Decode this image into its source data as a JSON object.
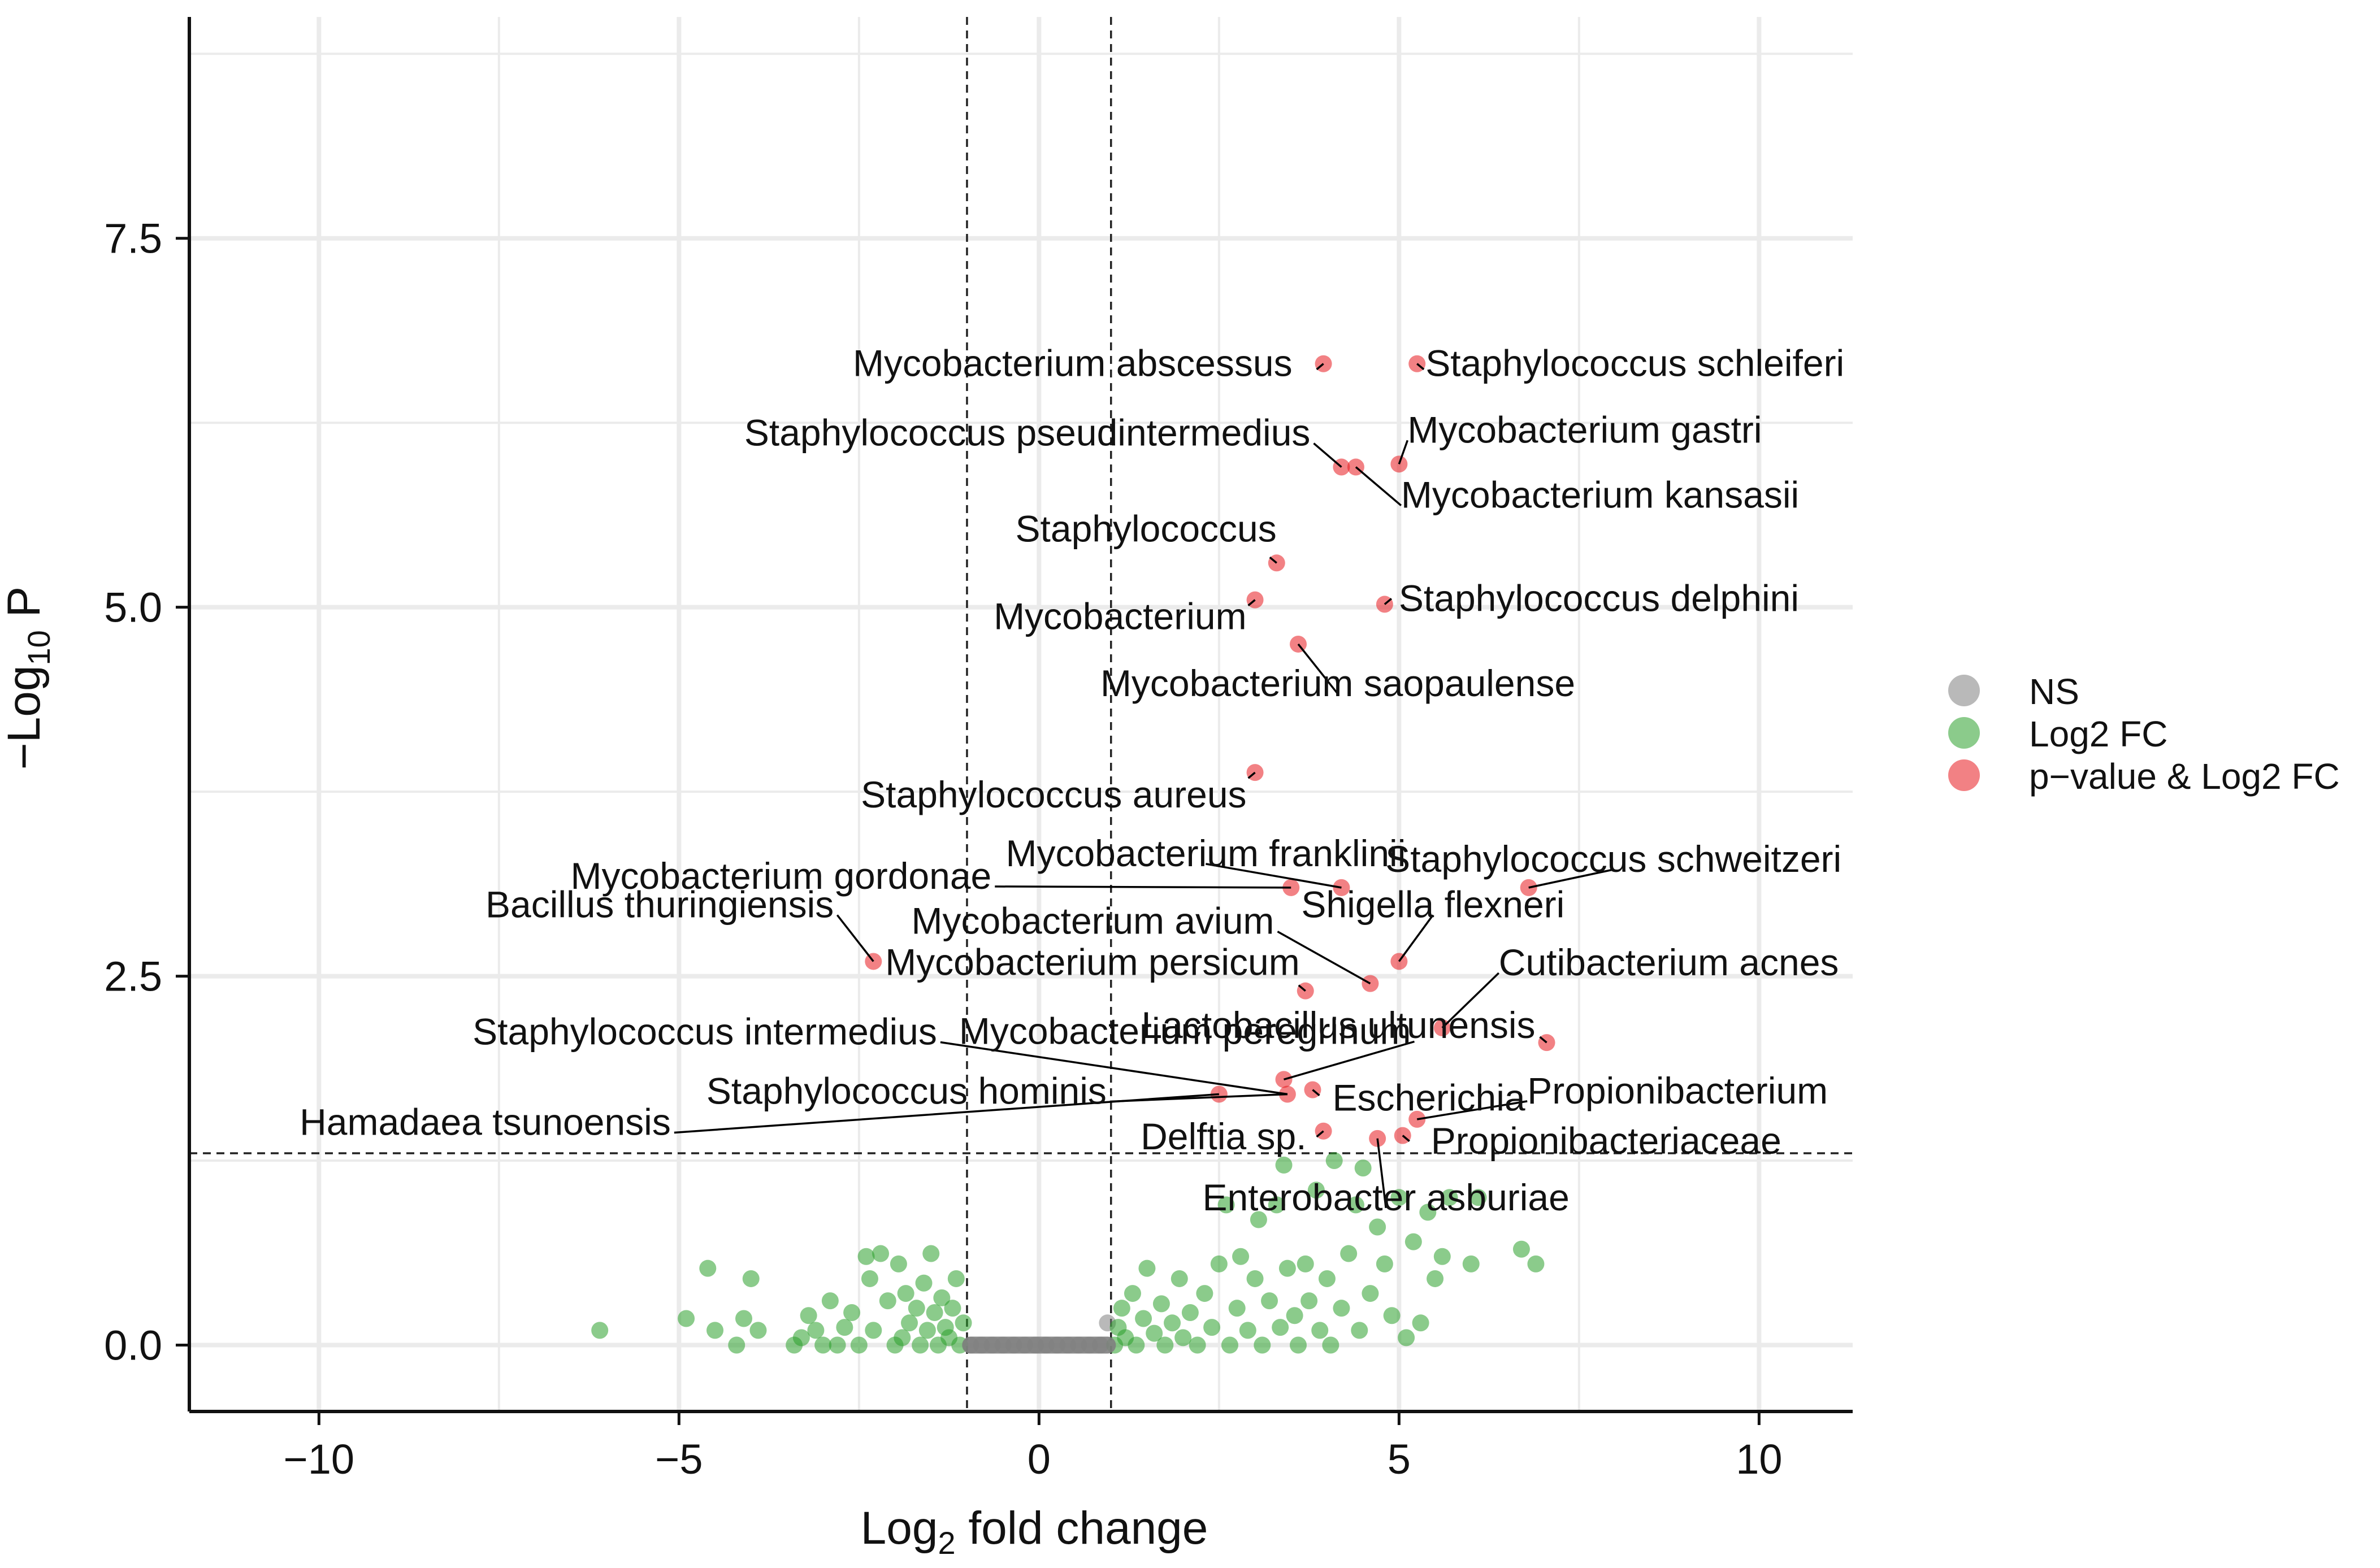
{
  "chart_data": {
    "type": "scatter",
    "title": "",
    "xlabel": {
      "main": "Log",
      "sub": "2",
      "rest": " fold change"
    },
    "ylabel": {
      "main": "−Log",
      "sub": "10",
      "rest": " P"
    },
    "xlim": [
      -11.8,
      11.3
    ],
    "ylim": [
      -0.45,
      9.0
    ],
    "x_ticks": [
      {
        "value": -10,
        "label": "−10"
      },
      {
        "value": -5,
        "label": "−5"
      },
      {
        "value": 0,
        "label": "0"
      },
      {
        "value": 5,
        "label": "5"
      },
      {
        "value": 10,
        "label": "10"
      }
    ],
    "y_ticks": [
      {
        "value": 0,
        "label": "0.0"
      },
      {
        "value": 2.5,
        "label": "2.5"
      },
      {
        "value": 5,
        "label": "5.0"
      },
      {
        "value": 7.5,
        "label": "7.5"
      }
    ],
    "thresholds": {
      "log2fc": [
        -1,
        1
      ],
      "neglog10p": 1.3
    },
    "colors": {
      "NS": "#808080",
      "Log2 FC": "#2ca02c",
      "p-value & Log2 FC": "#e8191f",
      "grid": "#ebebeb",
      "axis": "#111111"
    },
    "legend": {
      "position": "right",
      "entries": [
        {
          "name": "NS",
          "color": "#808080"
        },
        {
          "name": "Log2 FC",
          "color": "#2ca02c"
        },
        {
          "name": "p−value & Log2 FC",
          "color": "#e8191f"
        }
      ]
    },
    "series": [
      {
        "name": "NS",
        "points": [
          [
            -0.95,
            0.0
          ],
          [
            -0.8,
            0.0
          ],
          [
            -0.65,
            0.0
          ],
          [
            -0.5,
            0.0
          ],
          [
            -0.35,
            0.0
          ],
          [
            -0.2,
            0.0
          ],
          [
            -0.05,
            0.0
          ],
          [
            0.1,
            0.0
          ],
          [
            0.25,
            0.0
          ],
          [
            0.4,
            0.0
          ],
          [
            0.55,
            0.0
          ],
          [
            0.7,
            0.0
          ],
          [
            0.85,
            0.0
          ],
          [
            0.95,
            0.15
          ]
        ]
      },
      {
        "name": "Log2 FC",
        "points": [
          [
            -6.1,
            0.1
          ],
          [
            -4.9,
            0.18
          ],
          [
            -4.6,
            0.52
          ],
          [
            -4.5,
            0.1
          ],
          [
            -4.2,
            0.0
          ],
          [
            -4.1,
            0.18
          ],
          [
            -4.0,
            0.45
          ],
          [
            -3.9,
            0.1
          ],
          [
            -3.4,
            0.0
          ],
          [
            -3.3,
            0.05
          ],
          [
            -3.2,
            0.2
          ],
          [
            -3.1,
            0.1
          ],
          [
            -3.0,
            0.0
          ],
          [
            -2.9,
            0.3
          ],
          [
            -2.8,
            0.0
          ],
          [
            -2.7,
            0.12
          ],
          [
            -2.6,
            0.22
          ],
          [
            -2.5,
            0.0
          ],
          [
            -2.4,
            0.6
          ],
          [
            -2.35,
            0.45
          ],
          [
            -2.3,
            0.1
          ],
          [
            -2.2,
            0.62
          ],
          [
            -2.1,
            0.3
          ],
          [
            -2.0,
            0.0
          ],
          [
            -1.95,
            0.55
          ],
          [
            -1.9,
            0.05
          ],
          [
            -1.85,
            0.35
          ],
          [
            -1.8,
            0.15
          ],
          [
            -1.7,
            0.25
          ],
          [
            -1.65,
            0.0
          ],
          [
            -1.6,
            0.42
          ],
          [
            -1.55,
            0.1
          ],
          [
            -1.5,
            0.62
          ],
          [
            -1.45,
            0.22
          ],
          [
            -1.4,
            0.0
          ],
          [
            -1.35,
            0.32
          ],
          [
            -1.3,
            0.12
          ],
          [
            -1.25,
            0.05
          ],
          [
            -1.2,
            0.25
          ],
          [
            -1.15,
            0.45
          ],
          [
            -1.1,
            0.0
          ],
          [
            -1.05,
            0.15
          ],
          [
            1.05,
            0.0
          ],
          [
            1.1,
            0.12
          ],
          [
            1.15,
            0.25
          ],
          [
            1.2,
            0.05
          ],
          [
            1.3,
            0.35
          ],
          [
            1.35,
            0.0
          ],
          [
            1.45,
            0.18
          ],
          [
            1.5,
            0.52
          ],
          [
            1.6,
            0.08
          ],
          [
            1.7,
            0.28
          ],
          [
            1.75,
            0.0
          ],
          [
            1.85,
            0.15
          ],
          [
            1.95,
            0.45
          ],
          [
            2.0,
            0.05
          ],
          [
            2.1,
            0.22
          ],
          [
            2.2,
            0.0
          ],
          [
            2.3,
            0.35
          ],
          [
            2.4,
            0.12
          ],
          [
            2.5,
            0.55
          ],
          [
            2.6,
            0.95
          ],
          [
            2.65,
            0.0
          ],
          [
            2.75,
            0.25
          ],
          [
            2.8,
            0.6
          ],
          [
            2.9,
            0.1
          ],
          [
            3.0,
            0.45
          ],
          [
            3.05,
            0.85
          ],
          [
            3.1,
            0.0
          ],
          [
            3.2,
            0.3
          ],
          [
            3.3,
            0.95
          ],
          [
            3.35,
            0.12
          ],
          [
            3.4,
            1.22
          ],
          [
            3.45,
            0.52
          ],
          [
            3.55,
            0.2
          ],
          [
            3.6,
            0.0
          ],
          [
            3.7,
            0.55
          ],
          [
            3.75,
            0.3
          ],
          [
            3.85,
            1.05
          ],
          [
            3.9,
            0.1
          ],
          [
            4.0,
            0.45
          ],
          [
            4.05,
            0.0
          ],
          [
            4.1,
            1.25
          ],
          [
            4.2,
            0.25
          ],
          [
            4.3,
            0.62
          ],
          [
            4.4,
            0.95
          ],
          [
            4.45,
            0.1
          ],
          [
            4.5,
            1.2
          ],
          [
            4.6,
            0.35
          ],
          [
            4.7,
            0.8
          ],
          [
            4.8,
            0.55
          ],
          [
            4.9,
            0.2
          ],
          [
            5.0,
            1.0
          ],
          [
            5.1,
            0.05
          ],
          [
            5.2,
            0.7
          ],
          [
            5.3,
            0.15
          ],
          [
            5.4,
            0.9
          ],
          [
            5.5,
            0.45
          ],
          [
            5.6,
            0.6
          ],
          [
            5.7,
            1.0
          ],
          [
            6.0,
            0.55
          ],
          [
            6.1,
            1.0
          ],
          [
            6.7,
            0.65
          ],
          [
            6.9,
            0.55
          ]
        ]
      },
      {
        "name": "p-value & Log2 FC",
        "points": [
          [
            3.95,
            6.65
          ],
          [
            5.25,
            6.65
          ],
          [
            4.2,
            5.95
          ],
          [
            4.4,
            5.95
          ],
          [
            5.0,
            5.97
          ],
          [
            3.3,
            5.3
          ],
          [
            3.0,
            5.05
          ],
          [
            4.8,
            5.02
          ],
          [
            3.6,
            4.75
          ],
          [
            3.0,
            3.88
          ],
          [
            3.5,
            3.1
          ],
          [
            4.2,
            3.1
          ],
          [
            6.8,
            3.1
          ],
          [
            -2.3,
            2.6
          ],
          [
            4.6,
            2.45
          ],
          [
            5.0,
            2.6
          ],
          [
            3.7,
            2.4
          ],
          [
            5.6,
            2.15
          ],
          [
            7.05,
            2.05
          ],
          [
            3.4,
            1.8
          ],
          [
            2.5,
            1.7
          ],
          [
            3.45,
            1.7
          ],
          [
            3.8,
            1.73
          ],
          [
            5.25,
            1.53
          ],
          [
            3.95,
            1.45
          ],
          [
            4.7,
            1.4
          ],
          [
            5.05,
            1.42
          ]
        ]
      }
    ],
    "annotations": [
      {
        "label": "Mycobacterium abscessus",
        "x": 3.95,
        "y": 6.65
      },
      {
        "label": "Staphylococcus schleiferi",
        "x": 5.25,
        "y": 6.65
      },
      {
        "label": "Staphylococcus pseudintermedius",
        "x": 4.2,
        "y": 5.95
      },
      {
        "label": "Mycobacterium gastri",
        "x": 5.0,
        "y": 5.97
      },
      {
        "label": "Mycobacterium kansasii",
        "x": 4.4,
        "y": 5.95
      },
      {
        "label": "Staphylococcus",
        "x": 3.3,
        "y": 5.3
      },
      {
        "label": "Mycobacterium",
        "x": 3.0,
        "y": 5.05
      },
      {
        "label": "Staphylococcus delphini",
        "x": 4.8,
        "y": 5.02
      },
      {
        "label": "Mycobacterium saopaulense",
        "x": 3.6,
        "y": 4.75
      },
      {
        "label": "Staphylococcus aureus",
        "x": 3.0,
        "y": 3.88
      },
      {
        "label": "Mycobacterium gordonae",
        "x": 3.5,
        "y": 3.1
      },
      {
        "label": "Mycobacterium franklinii",
        "x": 4.2,
        "y": 3.1
      },
      {
        "label": "Staphylococcus schweitzeri",
        "x": 6.8,
        "y": 3.1
      },
      {
        "label": "Bacillus thuringiensis",
        "x": -2.3,
        "y": 2.6
      },
      {
        "label": "Mycobacterium avium",
        "x": 4.6,
        "y": 2.45
      },
      {
        "label": "Shigella flexneri",
        "x": 5.0,
        "y": 2.6
      },
      {
        "label": "Mycobacterium persicum",
        "x": 3.7,
        "y": 2.4
      },
      {
        "label": "Cutibacterium acnes",
        "x": 5.6,
        "y": 2.15
      },
      {
        "label": "Lactobacillus ultunensis",
        "x": 7.05,
        "y": 2.05
      },
      {
        "label": "Staphylococcus intermedius",
        "x": 3.45,
        "y": 1.7
      },
      {
        "label": "Mycobacterium peregrinum",
        "x": 3.4,
        "y": 1.8
      },
      {
        "label": "Staphylococcus hominis",
        "x": 3.45,
        "y": 1.7
      },
      {
        "label": "Escherichia",
        "x": 3.8,
        "y": 1.73
      },
      {
        "label": "Hamadaea tsunoensis",
        "x": 2.5,
        "y": 1.7
      },
      {
        "label": "Propionibacterium",
        "x": 5.25,
        "y": 1.53
      },
      {
        "label": "Delftia sp.",
        "x": 3.95,
        "y": 1.45
      },
      {
        "label": "Propionibacteriaceae",
        "x": 5.05,
        "y": 1.42
      },
      {
        "label": "Enterobacter asburiae",
        "x": 4.7,
        "y": 1.4
      }
    ]
  }
}
